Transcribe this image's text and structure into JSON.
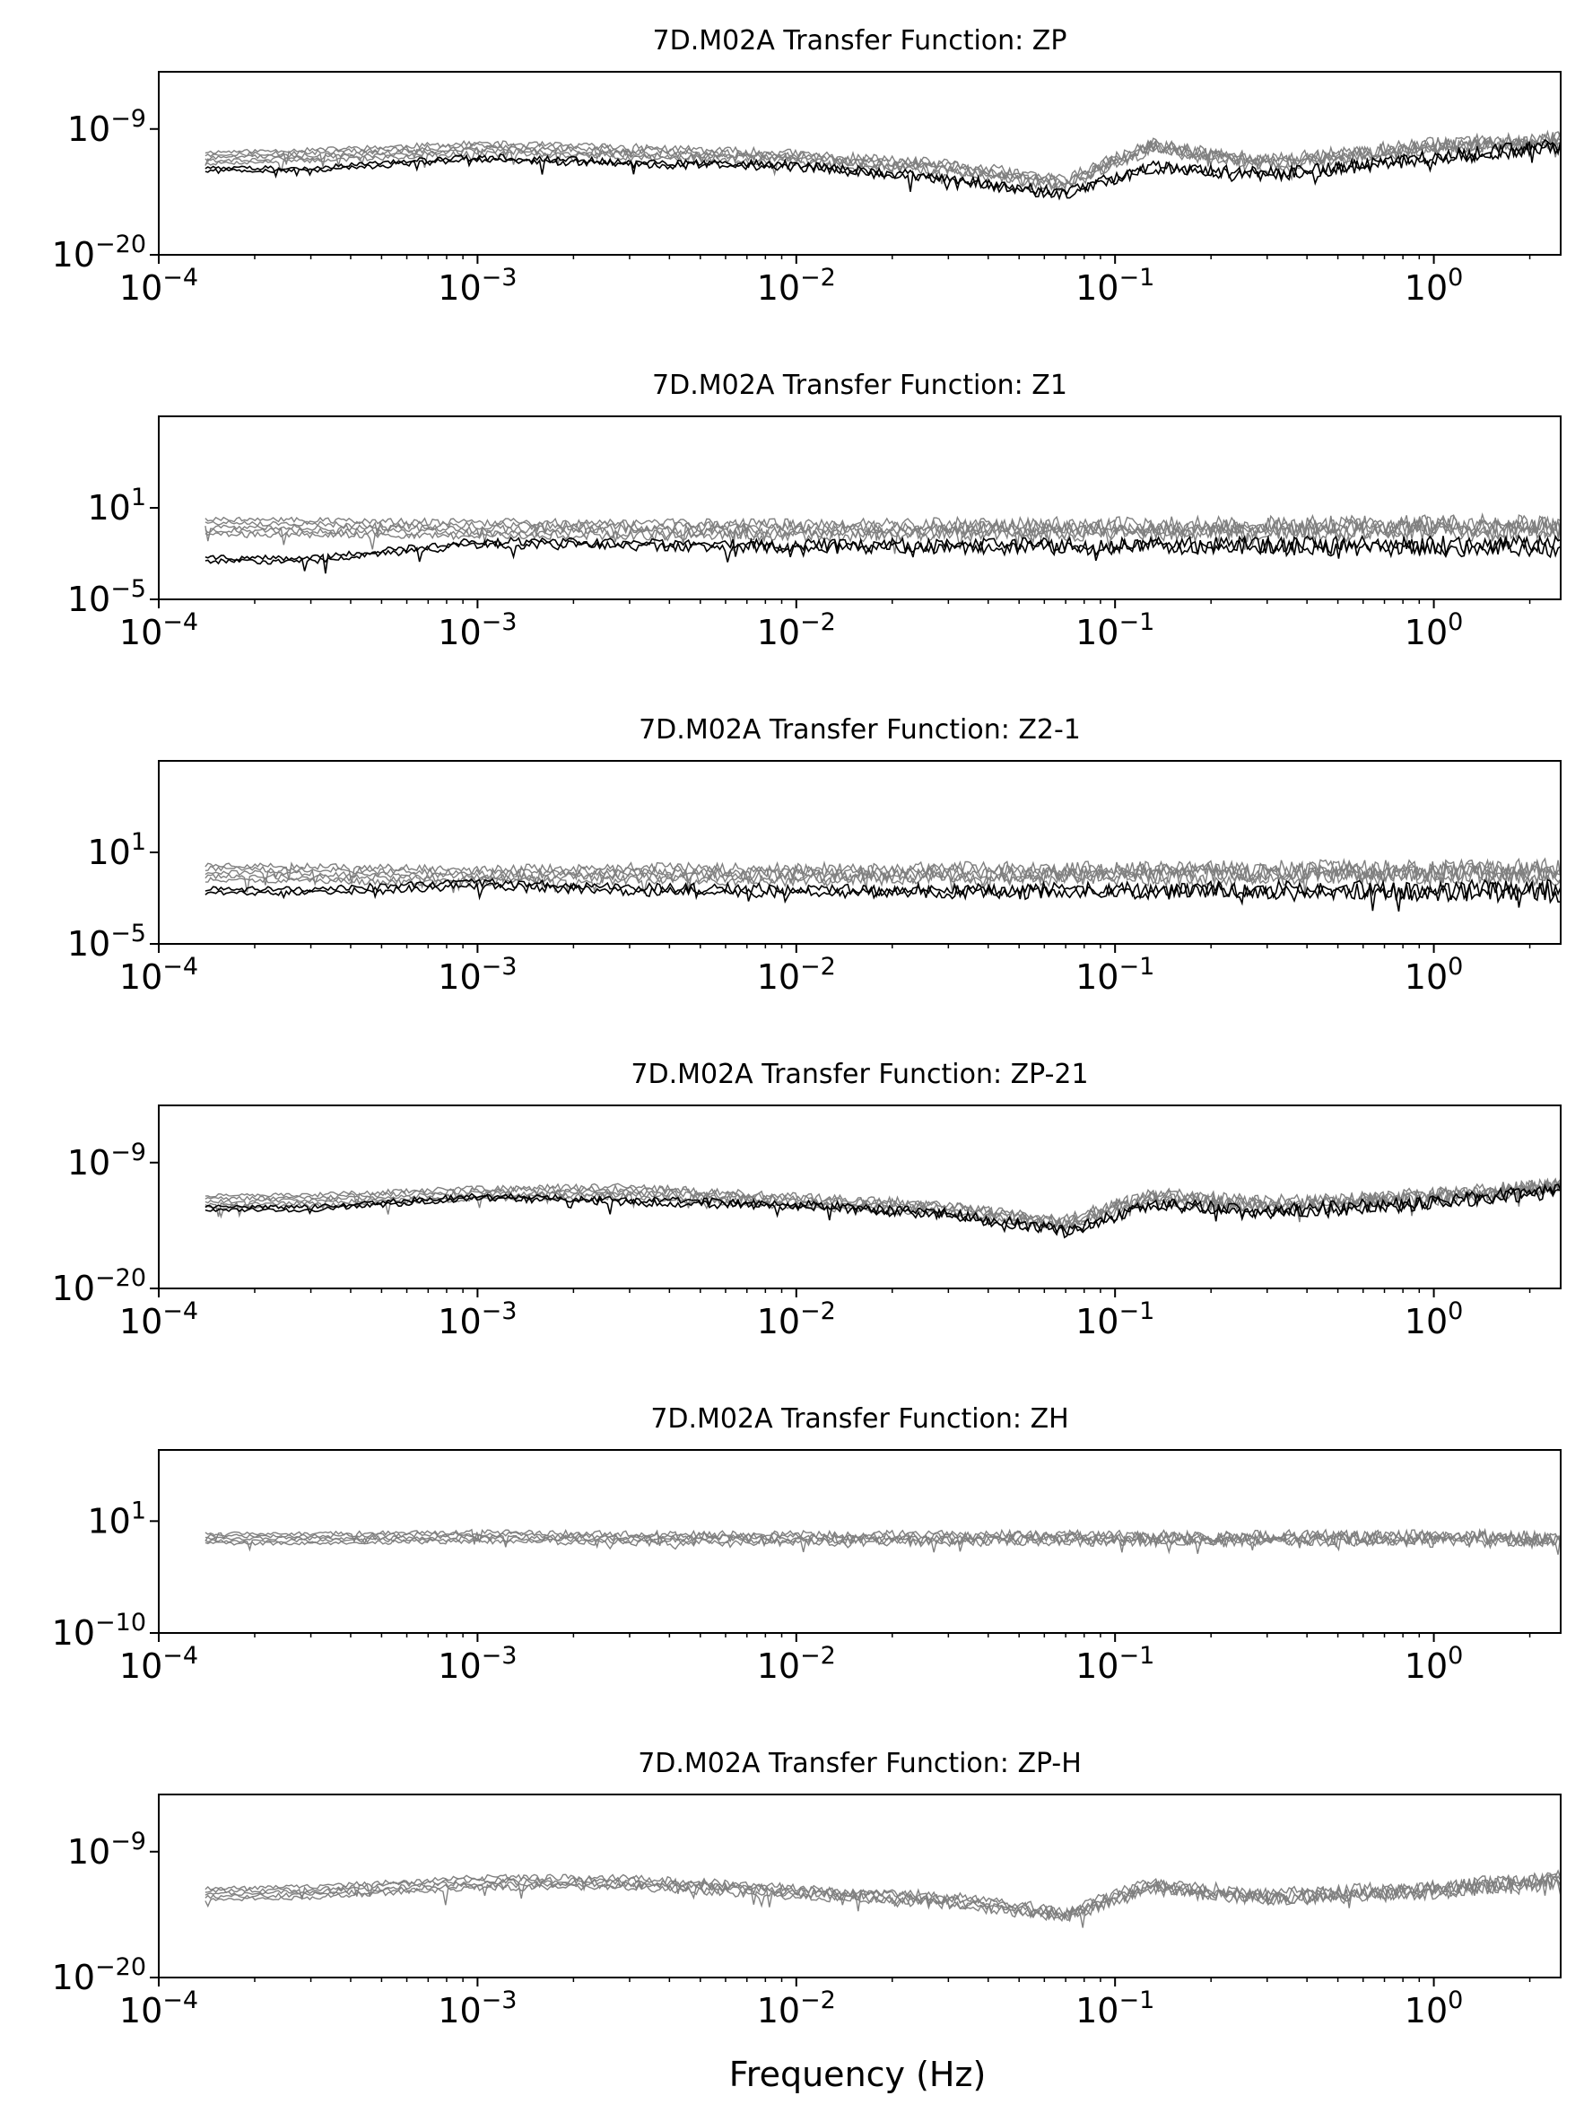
{
  "figure": {
    "xlabel": "Frequency (Hz)"
  },
  "chart_data": [
    {
      "type": "line",
      "title": "7D.M02A Transfer Function: ZP",
      "xlabel": "",
      "ylabel": "",
      "xscale": "log",
      "yscale": "log",
      "xlim": [
        0.0001,
        2.5
      ],
      "ylim": [
        1e-20,
        0.0001
      ],
      "xticks": [
        0.0001,
        0.001,
        0.01,
        0.1,
        1
      ],
      "xticklabels": [
        [
          "10",
          "−4"
        ],
        [
          "10",
          "−3"
        ],
        [
          "10",
          "−2"
        ],
        [
          "10",
          "−1"
        ],
        [
          "10",
          "0"
        ]
      ],
      "yticks": [
        1e-20,
        1e-09
      ],
      "yticklabels": [
        [
          "10",
          "−20"
        ],
        [
          "10",
          "−9"
        ]
      ],
      "legend": "none",
      "grid": false,
      "series": [
        {
          "color": "#808080",
          "x": [
            0.00014,
            0.0003,
            0.001,
            0.003,
            0.01,
            0.03,
            0.07,
            0.13,
            0.3,
            1,
            2.5
          ],
          "y": [
            3e-12,
            5e-12,
            2e-11,
            1e-11,
            3e-12,
            4e-13,
            2e-14,
            3e-11,
            1e-12,
            3e-11,
            1e-10
          ]
        },
        {
          "color": "#000000",
          "x": [
            0.00014,
            0.0003,
            0.001,
            0.003,
            0.01,
            0.03,
            0.07,
            0.13,
            0.3,
            1,
            2.5
          ],
          "y": [
            3e-13,
            3e-13,
            3e-12,
            1e-12,
            6e-13,
            4e-14,
            2e-15,
            5e-13,
            1e-13,
            3e-12,
            3e-11
          ]
        }
      ]
    },
    {
      "type": "line",
      "title": "7D.M02A Transfer Function: Z1",
      "xlabel": "",
      "ylabel": "",
      "xscale": "log",
      "yscale": "log",
      "xlim": [
        0.0001,
        2.5
      ],
      "ylim": [
        1e-05,
        10000000.0
      ],
      "xticks": [
        0.0001,
        0.001,
        0.01,
        0.1,
        1
      ],
      "xticklabels": [
        [
          "10",
          "−4"
        ],
        [
          "10",
          "−3"
        ],
        [
          "10",
          "−2"
        ],
        [
          "10",
          "−1"
        ],
        [
          "10",
          "0"
        ]
      ],
      "yticks": [
        1e-05,
        10
      ],
      "yticklabels": [
        [
          "10",
          "−5"
        ],
        [
          "10",
          "1"
        ]
      ],
      "legend": "none",
      "grid": false,
      "series": [
        {
          "color": "#808080",
          "x": [
            0.00014,
            0.0003,
            0.001,
            0.003,
            0.01,
            0.03,
            0.1,
            0.3,
            1,
            2.5
          ],
          "y": [
            0.6,
            0.5,
            0.4,
            0.4,
            0.35,
            0.4,
            0.4,
            0.45,
            0.5,
            0.5
          ]
        },
        {
          "color": "#000000",
          "x": [
            0.00014,
            0.0003,
            0.001,
            0.003,
            0.01,
            0.03,
            0.1,
            0.3,
            1,
            2.5
          ],
          "y": [
            0.004,
            0.004,
            0.05,
            0.04,
            0.03,
            0.03,
            0.03,
            0.03,
            0.03,
            0.03
          ]
        }
      ]
    },
    {
      "type": "line",
      "title": "7D.M02A Transfer Function: Z2-1",
      "xlabel": "",
      "ylabel": "",
      "xscale": "log",
      "yscale": "log",
      "xlim": [
        0.0001,
        2.5
      ],
      "ylim": [
        1e-05,
        10000000.0
      ],
      "xticks": [
        0.0001,
        0.001,
        0.01,
        0.1,
        1
      ],
      "xticklabels": [
        [
          "10",
          "−4"
        ],
        [
          "10",
          "−3"
        ],
        [
          "10",
          "−2"
        ],
        [
          "10",
          "−1"
        ],
        [
          "10",
          "0"
        ]
      ],
      "yticks": [
        1e-05,
        10
      ],
      "yticklabels": [
        [
          "10",
          "−5"
        ],
        [
          "10",
          "1"
        ]
      ],
      "legend": "none",
      "grid": false,
      "series": [
        {
          "color": "#808080",
          "x": [
            0.00014,
            0.0003,
            0.001,
            0.003,
            0.01,
            0.03,
            0.1,
            0.3,
            1,
            2.5
          ],
          "y": [
            0.5,
            0.4,
            0.3,
            0.4,
            0.35,
            0.4,
            0.4,
            0.45,
            0.5,
            0.5
          ]
        },
        {
          "color": "#000000",
          "x": [
            0.00014,
            0.0003,
            0.001,
            0.003,
            0.01,
            0.03,
            0.1,
            0.3,
            1,
            2.5
          ],
          "y": [
            0.03,
            0.03,
            0.08,
            0.04,
            0.03,
            0.03,
            0.03,
            0.03,
            0.03,
            0.03
          ]
        }
      ]
    },
    {
      "type": "line",
      "title": "7D.M02A Transfer Function: ZP-21",
      "xlabel": "",
      "ylabel": "",
      "xscale": "log",
      "yscale": "log",
      "xlim": [
        0.0001,
        2.5
      ],
      "ylim": [
        1e-20,
        0.0001
      ],
      "xticks": [
        0.0001,
        0.001,
        0.01,
        0.1,
        1
      ],
      "xticklabels": [
        [
          "10",
          "−4"
        ],
        [
          "10",
          "−3"
        ],
        [
          "10",
          "−2"
        ],
        [
          "10",
          "−1"
        ],
        [
          "10",
          "0"
        ]
      ],
      "yticks": [
        1e-20,
        1e-09
      ],
      "yticklabels": [
        [
          "10",
          "−20"
        ],
        [
          "10",
          "−9"
        ]
      ],
      "legend": "none",
      "grid": false,
      "series": [
        {
          "color": "#808080",
          "x": [
            0.00014,
            0.0003,
            0.001,
            0.003,
            0.01,
            0.03,
            0.07,
            0.13,
            0.3,
            1,
            2.5
          ],
          "y": [
            4e-13,
            5e-13,
            2e-12,
            3e-12,
            4e-13,
            1e-13,
            5e-15,
            1e-12,
            2e-13,
            1e-12,
            1e-11
          ]
        },
        {
          "color": "#000000",
          "x": [
            0.00014,
            0.0003,
            0.001,
            0.003,
            0.01,
            0.03,
            0.07,
            0.13,
            0.3,
            1,
            2.5
          ],
          "y": [
            1e-13,
            1e-13,
            1e-12,
            4e-13,
            2e-13,
            3e-14,
            1e-15,
            2e-13,
            5e-14,
            3e-13,
            3e-12
          ]
        }
      ]
    },
    {
      "type": "line",
      "title": "7D.M02A Transfer Function: ZH",
      "xlabel": "",
      "ylabel": "",
      "xscale": "log",
      "yscale": "log",
      "xlim": [
        0.0001,
        2.5
      ],
      "ylim": [
        1e-10,
        100000000.0
      ],
      "xticks": [
        0.0001,
        0.001,
        0.01,
        0.1,
        1
      ],
      "xticklabels": [
        [
          "10",
          "−4"
        ],
        [
          "10",
          "−3"
        ],
        [
          "10",
          "−2"
        ],
        [
          "10",
          "−1"
        ],
        [
          "10",
          "0"
        ]
      ],
      "yticks": [
        1e-10,
        10
      ],
      "yticklabels": [
        [
          "10",
          "−10"
        ],
        [
          "10",
          "1"
        ]
      ],
      "legend": "none",
      "grid": false,
      "series": [
        {
          "color": "#808080",
          "x": [
            0.00014,
            0.0003,
            0.001,
            0.003,
            0.01,
            0.03,
            0.1,
            0.3,
            1,
            2.5
          ],
          "y": [
            0.2,
            0.2,
            0.3,
            0.2,
            0.2,
            0.2,
            0.2,
            0.2,
            0.2,
            0.15
          ]
        }
      ]
    },
    {
      "type": "line",
      "title": "7D.M02A Transfer Function: ZP-H",
      "xlabel": "",
      "ylabel": "",
      "xscale": "log",
      "yscale": "log",
      "xlim": [
        0.0001,
        2.5
      ],
      "ylim": [
        1e-20,
        0.0001
      ],
      "xticks": [
        0.0001,
        0.001,
        0.01,
        0.1,
        1
      ],
      "xticklabels": [
        [
          "10",
          "−4"
        ],
        [
          "10",
          "−3"
        ],
        [
          "10",
          "−2"
        ],
        [
          "10",
          "−1"
        ],
        [
          "10",
          "0"
        ]
      ],
      "yticks": [
        1e-20,
        1e-09
      ],
      "yticklabels": [
        [
          "10",
          "−20"
        ],
        [
          "10",
          "−9"
        ]
      ],
      "legend": "none",
      "grid": false,
      "series": [
        {
          "color": "#808080",
          "x": [
            0.00014,
            0.0003,
            0.001,
            0.003,
            0.01,
            0.03,
            0.07,
            0.13,
            0.3,
            1,
            2.5
          ],
          "y": [
            2e-13,
            3e-13,
            2e-12,
            2e-12,
            3e-13,
            6e-14,
            3e-15,
            1e-12,
            1e-13,
            5e-13,
            3e-12
          ]
        }
      ]
    }
  ]
}
